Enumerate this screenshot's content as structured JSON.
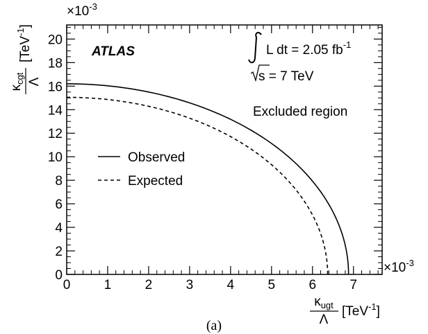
{
  "chart_data": {
    "type": "line",
    "caption": "(a)",
    "xlabel": {
      "num": "κ",
      "num_sub": "ugt",
      "den": "Λ",
      "unit": "[TeV",
      "unit_sup": "-1",
      "unit_end": "]"
    },
    "ylabel": {
      "num": "κ",
      "num_sub": "cgt",
      "den": "Λ",
      "unit": "[TeV",
      "unit_sup": "-1",
      "unit_end": "]"
    },
    "x_multiplier": {
      "base": "×10",
      "exp": "-3"
    },
    "y_multiplier": {
      "base": "×10",
      "exp": "-3"
    },
    "xlim": [
      0,
      7.7
    ],
    "ylim": [
      0,
      21.2
    ],
    "xticks": [
      "0",
      "1",
      "2",
      "3",
      "4",
      "5",
      "6",
      "7"
    ],
    "yticks": [
      "0",
      "2",
      "4",
      "6",
      "8",
      "10",
      "12",
      "14",
      "16",
      "18",
      "20"
    ],
    "series": [
      {
        "name": "Observed",
        "style": "solid",
        "x0": 6.88,
        "y0": 16.2
      },
      {
        "name": "Expected",
        "style": "dashed",
        "x0": 6.37,
        "y0": 15.05
      }
    ],
    "annotations": {
      "experiment": "ATLAS",
      "lumi_text": "L dt = 2.05 fb",
      "lumi_sup": "-1",
      "energy_text": "s = 7 TeV",
      "region": "Excluded region"
    },
    "legend_placement": "middle-left",
    "grid": false
  }
}
